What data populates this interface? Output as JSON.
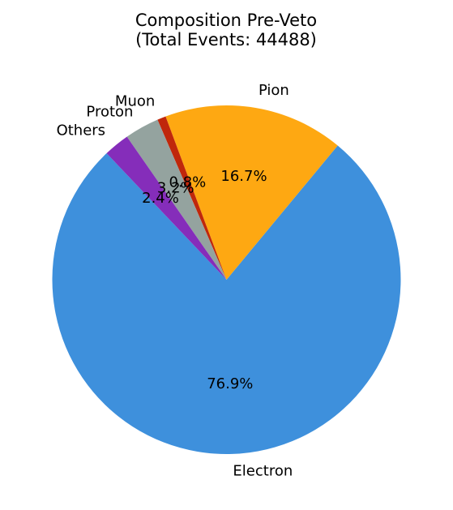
{
  "chart_data": {
    "type": "pie",
    "title": "Composition Pre-Veto",
    "subtitle": "(Total Events: 44488)",
    "slices": [
      {
        "label": "Electron",
        "value": 76.9,
        "pct_label": "76.9%",
        "color": "#3e90dc"
      },
      {
        "label": "Pion",
        "value": 16.7,
        "pct_label": "16.7%",
        "color": "#fea812"
      },
      {
        "label": "Muon",
        "value": 0.8,
        "pct_label": "0.8%",
        "color": "#c0270b"
      },
      {
        "label": "Proton",
        "value": 3.2,
        "pct_label": "3.2%",
        "color": "#94a39f"
      },
      {
        "label": "Others",
        "value": 2.4,
        "pct_label": "2.4%",
        "color": "#852dba"
      }
    ]
  }
}
